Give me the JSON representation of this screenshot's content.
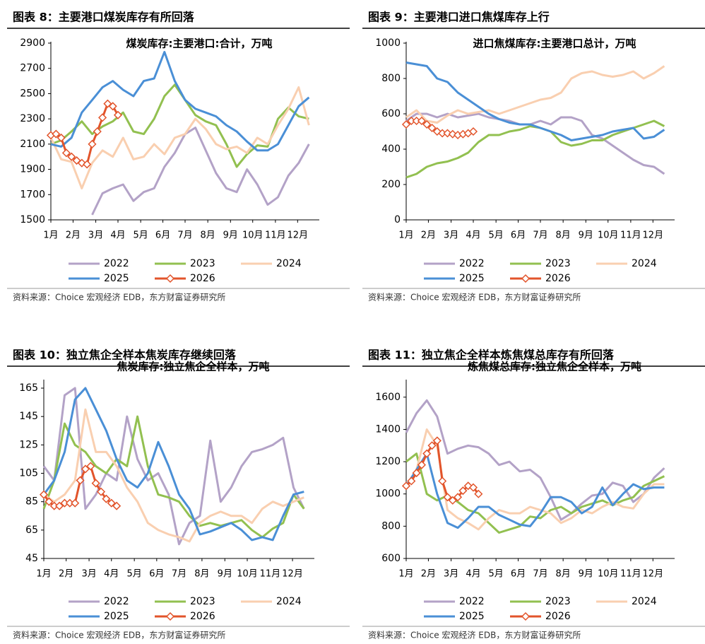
{
  "chart_data": [
    {
      "type": "line",
      "figure_title": "图表 8：主要港口煤炭库存有所回落",
      "title": "煤炭库存:主要港口:合计，万吨",
      "source": "资料来源：Choice 宏观经济 EDB，东方财富证券研究所",
      "x": [
        0,
        2,
        4,
        6,
        8,
        10,
        12,
        14,
        16,
        18,
        20,
        22,
        24,
        26,
        28,
        30,
        32,
        34,
        36,
        38,
        40,
        42,
        44,
        46,
        48,
        50
      ],
      "xlim": [
        0,
        52
      ],
      "xticks": [
        {
          "value": 0,
          "label": "1月"
        },
        {
          "value": 4.3,
          "label": "2月"
        },
        {
          "value": 8.7,
          "label": "3月"
        },
        {
          "value": 13,
          "label": "4月"
        },
        {
          "value": 17.4,
          "label": "5月"
        },
        {
          "value": 21.7,
          "label": "6月"
        },
        {
          "value": 26,
          "label": "7月"
        },
        {
          "value": 30.4,
          "label": "8月"
        },
        {
          "value": 34.8,
          "label": "9月"
        },
        {
          "value": 39.1,
          "label": "10月"
        },
        {
          "value": 43.5,
          "label": "11月"
        },
        {
          "value": 47.8,
          "label": "12月"
        }
      ],
      "ylim": [
        1500,
        2900
      ],
      "yticks": [
        1500,
        1700,
        1900,
        2100,
        2300,
        2500,
        2700,
        2900
      ],
      "series": [
        {
          "name": "2022",
          "color": "#b3a2c7",
          "values": [
            null,
            null,
            null,
            null,
            1540,
            1710,
            1750,
            1780,
            1650,
            1720,
            1750,
            1920,
            2030,
            2180,
            2230,
            2050,
            1870,
            1750,
            1720,
            1900,
            1780,
            1620,
            1680,
            1850,
            1950,
            2100
          ]
        },
        {
          "name": "2023",
          "color": "#92c050",
          "values": [
            2100,
            2130,
            2200,
            2280,
            2180,
            2240,
            2280,
            2350,
            2200,
            2180,
            2300,
            2480,
            2570,
            2450,
            2330,
            2280,
            2250,
            2100,
            1920,
            2020,
            2090,
            2080,
            2300,
            2390,
            2320,
            2300
          ]
        },
        {
          "name": "2024",
          "color": "#f9cfb0",
          "values": [
            2150,
            1980,
            1960,
            1750,
            1950,
            2050,
            2000,
            2150,
            1980,
            2000,
            2100,
            2020,
            2150,
            2180,
            2300,
            2220,
            2100,
            2060,
            2080,
            2030,
            2150,
            2100,
            2250,
            2380,
            2550,
            2250
          ]
        },
        {
          "name": "2025",
          "color": "#4a8fd6",
          "values": [
            2100,
            2080,
            2150,
            2350,
            2450,
            2550,
            2600,
            2530,
            2480,
            2600,
            2620,
            2830,
            2600,
            2450,
            2380,
            2350,
            2320,
            2250,
            2200,
            2120,
            2050,
            2050,
            2100,
            2250,
            2400,
            2470
          ]
        },
        {
          "name": "2026",
          "color": "#e2542b",
          "marker": "diamond",
          "x": [
            0,
            1,
            2,
            3,
            4,
            5,
            6,
            7,
            8,
            9,
            10,
            11,
            12,
            13
          ],
          "values": [
            2170,
            2180,
            2150,
            2030,
            2000,
            1970,
            1950,
            1940,
            2100,
            2200,
            2310,
            2420,
            2400,
            2330
          ]
        }
      ]
    },
    {
      "type": "line",
      "figure_title": "图表 9：主要港口进口焦煤库存上行",
      "title": "进口焦煤库存:主要港口总计，万吨",
      "source": "资料来源：Choice 宏观经济 EDB，东方财富证券研究所",
      "x": [
        0,
        2,
        4,
        6,
        8,
        10,
        12,
        14,
        16,
        18,
        20,
        22,
        24,
        26,
        28,
        30,
        32,
        34,
        36,
        38,
        40,
        42,
        44,
        46,
        48,
        50
      ],
      "xlim": [
        0,
        52
      ],
      "xticks": [
        {
          "value": 0,
          "label": "1月"
        },
        {
          "value": 4.3,
          "label": "2月"
        },
        {
          "value": 8.7,
          "label": "3月"
        },
        {
          "value": 13,
          "label": "4月"
        },
        {
          "value": 17.4,
          "label": "5月"
        },
        {
          "value": 21.7,
          "label": "6月"
        },
        {
          "value": 26,
          "label": "7月"
        },
        {
          "value": 30.4,
          "label": "8月"
        },
        {
          "value": 34.8,
          "label": "9月"
        },
        {
          "value": 39.1,
          "label": "10月"
        },
        {
          "value": 43.5,
          "label": "11月"
        },
        {
          "value": 47.8,
          "label": "12月"
        }
      ],
      "ylim": [
        0,
        1000
      ],
      "yticks": [
        0,
        200,
        400,
        600,
        800,
        1000
      ],
      "series": [
        {
          "name": "2022",
          "color": "#b3a2c7",
          "values": [
            560,
            600,
            600,
            580,
            600,
            580,
            590,
            600,
            580,
            570,
            560,
            540,
            540,
            560,
            540,
            580,
            580,
            560,
            480,
            460,
            420,
            380,
            340,
            310,
            300,
            260
          ]
        },
        {
          "name": "2023",
          "color": "#92c050",
          "values": [
            240,
            260,
            300,
            320,
            330,
            350,
            380,
            440,
            480,
            480,
            500,
            510,
            530,
            520,
            500,
            440,
            420,
            430,
            450,
            450,
            480,
            500,
            520,
            540,
            560,
            530
          ]
        },
        {
          "name": "2024",
          "color": "#f9cfb0",
          "values": [
            580,
            620,
            560,
            550,
            590,
            620,
            600,
            610,
            620,
            600,
            620,
            640,
            660,
            680,
            690,
            720,
            800,
            830,
            840,
            820,
            810,
            820,
            840,
            800,
            830,
            870
          ]
        },
        {
          "name": "2025",
          "color": "#4a8fd6",
          "values": [
            890,
            880,
            870,
            800,
            780,
            720,
            680,
            640,
            600,
            570,
            550,
            540,
            540,
            520,
            500,
            480,
            450,
            460,
            470,
            480,
            500,
            510,
            520,
            460,
            470,
            510
          ]
        },
        {
          "name": "2026",
          "color": "#e2542b",
          "marker": "diamond",
          "x": [
            0,
            1,
            2,
            3,
            4,
            5,
            6,
            7,
            8,
            9,
            10,
            11,
            12,
            13
          ],
          "values": [
            540,
            560,
            560,
            560,
            540,
            520,
            500,
            490,
            490,
            485,
            480,
            485,
            490,
            500
          ]
        }
      ]
    },
    {
      "type": "line",
      "figure_title": "图表 10：独立焦企全样本焦炭库存继续回落",
      "title": "焦炭库存:独立焦企全样本，万吨",
      "source": "资料来源：Choice 宏观经济 EDB，东方财富证券研究所",
      "x": [
        0,
        2,
        4,
        6,
        8,
        10,
        12,
        14,
        16,
        18,
        20,
        22,
        24,
        26,
        28,
        30,
        32,
        34,
        36,
        38,
        40,
        42,
        44,
        46,
        48,
        50
      ],
      "xlim": [
        0,
        52
      ],
      "xticks": [
        {
          "value": 0,
          "label": "1月"
        },
        {
          "value": 4.3,
          "label": "2月"
        },
        {
          "value": 8.7,
          "label": "3月"
        },
        {
          "value": 13,
          "label": "4月"
        },
        {
          "value": 17.4,
          "label": "5月"
        },
        {
          "value": 21.7,
          "label": "6月"
        },
        {
          "value": 26,
          "label": "7月"
        },
        {
          "value": 30.4,
          "label": "8月"
        },
        {
          "value": 34.8,
          "label": "9月"
        },
        {
          "value": 39.1,
          "label": "10月"
        },
        {
          "value": 43.5,
          "label": "11月"
        },
        {
          "value": 47.8,
          "label": "12月"
        }
      ],
      "ylim": [
        45,
        170
      ],
      "yticks": [
        45,
        65,
        85,
        105,
        125,
        145,
        165
      ],
      "series": [
        {
          "name": "2022",
          "color": "#b3a2c7",
          "values": [
            110,
            100,
            160,
            165,
            80,
            90,
            105,
            100,
            145,
            115,
            100,
            105,
            90,
            55,
            70,
            75,
            128,
            85,
            95,
            110,
            120,
            122,
            125,
            130,
            95,
            80
          ]
        },
        {
          "name": "2023",
          "color": "#92c050",
          "values": [
            80,
            100,
            140,
            125,
            120,
            110,
            105,
            115,
            110,
            145,
            110,
            90,
            88,
            85,
            75,
            68,
            70,
            68,
            70,
            72,
            65,
            60,
            66,
            70,
            90,
            80
          ]
        },
        {
          "name": "2024",
          "color": "#f9cfb0",
          "values": [
            90,
            85,
            90,
            100,
            150,
            120,
            120,
            110,
            95,
            85,
            70,
            65,
            62,
            60,
            57,
            70,
            75,
            78,
            75,
            75,
            70,
            80,
            85,
            82,
            85,
            88
          ]
        },
        {
          "name": "2025",
          "color": "#4a8fd6",
          "values": [
            90,
            100,
            120,
            157,
            165,
            150,
            135,
            115,
            100,
            95,
            105,
            127,
            110,
            90,
            80,
            62,
            64,
            67,
            70,
            65,
            58,
            60,
            58,
            75,
            90,
            92
          ]
        },
        {
          "name": "2026",
          "color": "#e2542b",
          "marker": "diamond",
          "x": [
            0,
            1,
            2,
            3,
            4,
            5,
            6,
            7,
            8,
            9,
            10,
            11,
            12,
            13,
            14
          ],
          "values": [
            90,
            85,
            82,
            82,
            84,
            84,
            84,
            100,
            108,
            110,
            98,
            92,
            87,
            84,
            82
          ]
        }
      ]
    },
    {
      "type": "line",
      "figure_title": "图表 11：独立焦企全样本炼焦煤总库存有所回落",
      "title": "炼焦煤总库存:独立焦企全样本，万吨",
      "source": "资料来源：Choice 宏观经济 EDB，东方财富证券研究所",
      "x": [
        0,
        2,
        4,
        6,
        8,
        10,
        12,
        14,
        16,
        18,
        20,
        22,
        24,
        26,
        28,
        30,
        32,
        34,
        36,
        38,
        40,
        42,
        44,
        46,
        48,
        50
      ],
      "xlim": [
        0,
        52
      ],
      "xticks": [
        {
          "value": 0,
          "label": "1月"
        },
        {
          "value": 4.3,
          "label": "2月"
        },
        {
          "value": 8.7,
          "label": "3月"
        },
        {
          "value": 13,
          "label": "4月"
        },
        {
          "value": 17.4,
          "label": "5月"
        },
        {
          "value": 21.7,
          "label": "6月"
        },
        {
          "value": 26,
          "label": "7月"
        },
        {
          "value": 30.4,
          "label": "8月"
        },
        {
          "value": 34.8,
          "label": "9月"
        },
        {
          "value": 39.1,
          "label": "10月"
        },
        {
          "value": 43.5,
          "label": "11月"
        },
        {
          "value": 47.8,
          "label": "12月"
        }
      ],
      "ylim": [
        600,
        1700
      ],
      "yticks": [
        600,
        800,
        1000,
        1200,
        1400,
        1600
      ],
      "series": [
        {
          "name": "2022",
          "color": "#b3a2c7",
          "values": [
            1380,
            1500,
            1580,
            1480,
            1250,
            1280,
            1300,
            1290,
            1250,
            1180,
            1200,
            1140,
            1150,
            1100,
            980,
            840,
            880,
            940,
            990,
            1000,
            1070,
            1050,
            950,
            1000,
            1100,
            1160
          ]
        },
        {
          "name": "2023",
          "color": "#92c050",
          "values": [
            1200,
            1250,
            1000,
            960,
            990,
            950,
            900,
            880,
            820,
            760,
            780,
            800,
            860,
            850,
            900,
            920,
            880,
            920,
            940,
            960,
            930,
            960,
            980,
            1050,
            1080,
            1110
          ]
        },
        {
          "name": "2024",
          "color": "#f9cfb0",
          "values": [
            1050,
            1150,
            1400,
            1300,
            900,
            850,
            820,
            780,
            850,
            900,
            880,
            880,
            920,
            900,
            880,
            820,
            850,
            900,
            880,
            920,
            950,
            920,
            910,
            1000,
            1060,
            1060
          ]
        },
        {
          "name": "2025",
          "color": "#4a8fd6",
          "values": [
            1050,
            1150,
            1250,
            1000,
            820,
            790,
            850,
            920,
            920,
            870,
            840,
            810,
            800,
            880,
            980,
            980,
            950,
            880,
            920,
            1040,
            930,
            1000,
            1060,
            1030,
            1040,
            1040
          ]
        },
        {
          "name": "2026",
          "color": "#e2542b",
          "marker": "diamond",
          "x": [
            0,
            1,
            2,
            3,
            4,
            5,
            6,
            7,
            8,
            9,
            10,
            11,
            12,
            13,
            14
          ],
          "values": [
            1050,
            1080,
            1130,
            1180,
            1250,
            1300,
            1330,
            1080,
            980,
            960,
            980,
            1020,
            1050,
            1040,
            1000
          ]
        }
      ]
    }
  ]
}
